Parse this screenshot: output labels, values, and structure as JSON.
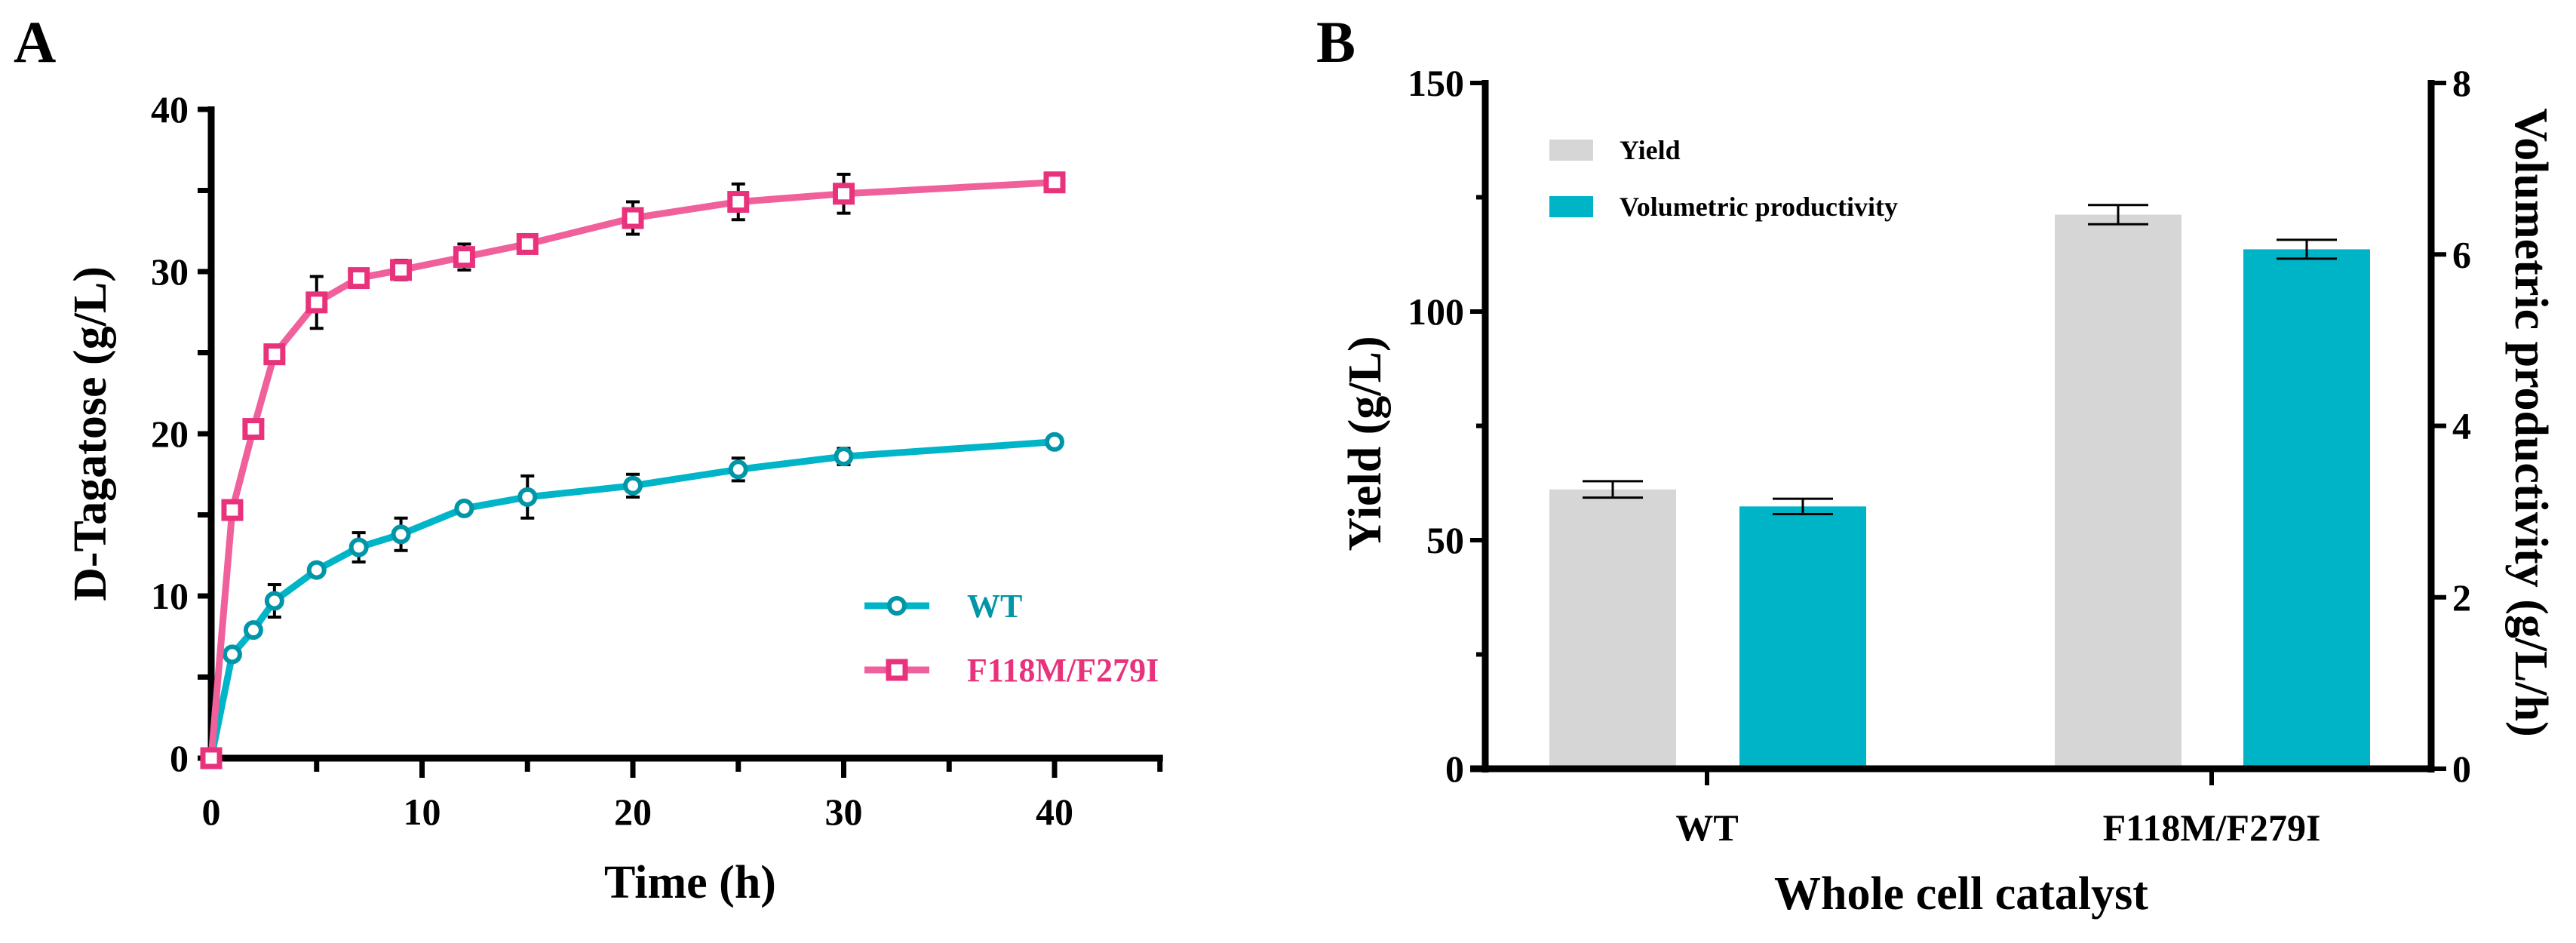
{
  "chart_data": [
    {
      "type": "line",
      "panel_label": "A",
      "xlabel": "Time (h)",
      "ylabel": "D-Tagatose (g/L)",
      "xlim": [
        0,
        45
      ],
      "ylim": [
        0,
        40
      ],
      "xticks": [
        0,
        10,
        20,
        30,
        40
      ],
      "yticks": [
        0,
        10,
        20,
        30,
        40
      ],
      "legend_position": "bottom-right",
      "x": [
        0,
        1,
        2,
        3,
        5,
        7,
        9,
        12,
        15,
        20,
        25,
        30,
        40
      ],
      "series": [
        {
          "name": "WT",
          "color": "#00b5c8",
          "marker": "circle",
          "values": [
            0,
            6.4,
            7.9,
            9.7,
            11.6,
            13.0,
            13.8,
            15.4,
            16.1,
            16.8,
            17.8,
            18.6,
            19.5
          ],
          "errors": [
            0,
            0.2,
            0.3,
            1.0,
            0.3,
            0.9,
            1.0,
            0.3,
            1.3,
            0.7,
            0.7,
            0.5,
            0.3
          ]
        },
        {
          "name": "F118M/F279I",
          "color": "#f0609a",
          "marker": "square",
          "values": [
            0,
            15.3,
            20.3,
            24.9,
            28.1,
            29.6,
            30.1,
            30.9,
            31.7,
            33.3,
            34.3,
            34.8,
            35.5
          ],
          "errors": [
            0,
            0.3,
            0.3,
            0.3,
            1.6,
            0.3,
            0.6,
            0.8,
            0.3,
            1.0,
            1.1,
            1.2,
            0.5
          ]
        }
      ]
    },
    {
      "type": "bar",
      "panel_label": "B",
      "xlabel": "Whole cell catalyst",
      "ylabel": "Yield (g/L)",
      "y2label": "Volumetric productivity (g/L/h)",
      "categories": [
        "WT",
        "F118M/F279I"
      ],
      "ylim": [
        0,
        150
      ],
      "yticks": [
        0,
        50,
        100,
        150
      ],
      "y2lim": [
        0,
        8
      ],
      "y2ticks": [
        0,
        2,
        4,
        6,
        8
      ],
      "legend_position": "top-left",
      "series": [
        {
          "name": "Yield",
          "axis": "left",
          "color": "#d6d6d6",
          "values": [
            61.1,
            121.2
          ],
          "errors": [
            1.8,
            2.1
          ]
        },
        {
          "name": "Volumetric productivity",
          "axis": "right",
          "color": "#00b4c8",
          "values": [
            3.06,
            6.06
          ],
          "errors": [
            0.09,
            0.11
          ]
        }
      ]
    }
  ]
}
